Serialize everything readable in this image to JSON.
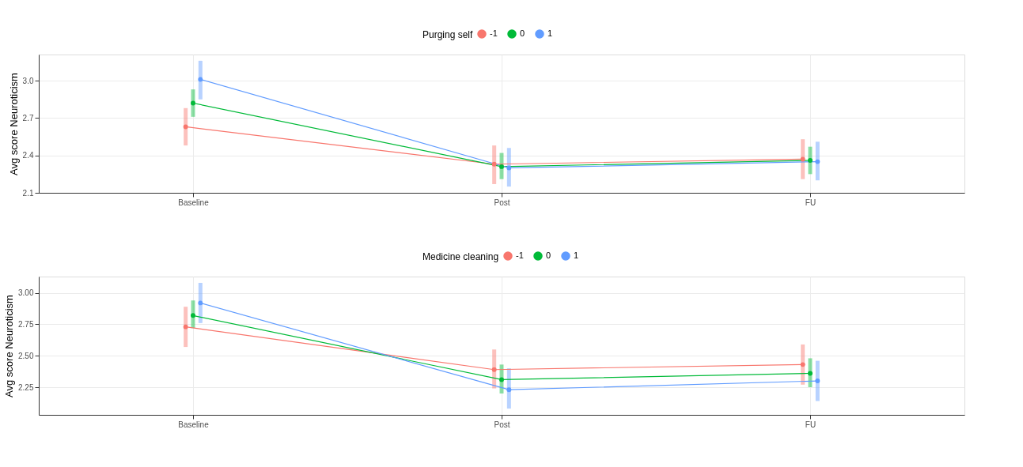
{
  "chart_data": [
    {
      "type": "line",
      "legend_title": "Purging self",
      "ylabel": "Avg score Neuroticism",
      "categories": [
        "Baseline",
        "Post",
        "FU"
      ],
      "ylim": [
        2.1,
        3.21
      ],
      "yticks": [
        2.1,
        2.4,
        2.7,
        {
          "value": 3,
          "label": "3.0"
        }
      ],
      "grid": true,
      "legend": "top",
      "marker": "circle",
      "line_style": "solid",
      "series": [
        {
          "name": "-1",
          "color": "#f8766d",
          "values": [
            2.63,
            2.33,
            2.37
          ],
          "errors": [
            [
              2.48,
              2.78
            ],
            [
              2.17,
              2.48
            ],
            [
              2.21,
              2.53
            ]
          ]
        },
        {
          "name": "0",
          "color": "#00ba38",
          "values": [
            2.82,
            2.31,
            2.36
          ],
          "errors": [
            [
              2.71,
              2.93
            ],
            [
              2.21,
              2.42
            ],
            [
              2.25,
              2.47
            ]
          ]
        },
        {
          "name": "1",
          "color": "#619cff",
          "values": [
            3.01,
            2.3,
            2.35
          ],
          "errors": [
            [
              2.85,
              3.16
            ],
            [
              2.15,
              2.46
            ],
            [
              2.2,
              2.51
            ]
          ]
        }
      ]
    },
    {
      "type": "line",
      "legend_title": "Medicine cleaning",
      "ylabel": "Avg score Neuroticism",
      "categories": [
        "Baseline",
        "Post",
        "FU"
      ],
      "ylim": [
        2.03,
        3.13
      ],
      "yticks": [
        {
          "value": 2.25,
          "label": "2.25"
        },
        {
          "value": 2.5,
          "label": "2.50"
        },
        {
          "value": 2.75,
          "label": "2.75"
        },
        {
          "value": 3,
          "label": "3.00"
        }
      ],
      "grid": true,
      "legend": "top",
      "marker": "circle",
      "line_style": "solid",
      "series": [
        {
          "name": "-1",
          "color": "#f8766d",
          "values": [
            2.73,
            2.39,
            2.43
          ],
          "errors": [
            [
              2.57,
              2.89
            ],
            [
              2.24,
              2.55
            ],
            [
              2.27,
              2.59
            ]
          ]
        },
        {
          "name": "0",
          "color": "#00ba38",
          "values": [
            2.82,
            2.31,
            2.36
          ],
          "errors": [
            [
              2.72,
              2.94
            ],
            [
              2.2,
              2.43
            ],
            [
              2.25,
              2.48
            ]
          ]
        },
        {
          "name": "1",
          "color": "#619cff",
          "values": [
            2.92,
            2.23,
            2.3
          ],
          "errors": [
            [
              2.76,
              3.08
            ],
            [
              2.08,
              2.4
            ],
            [
              2.14,
              2.46
            ]
          ]
        }
      ]
    }
  ]
}
